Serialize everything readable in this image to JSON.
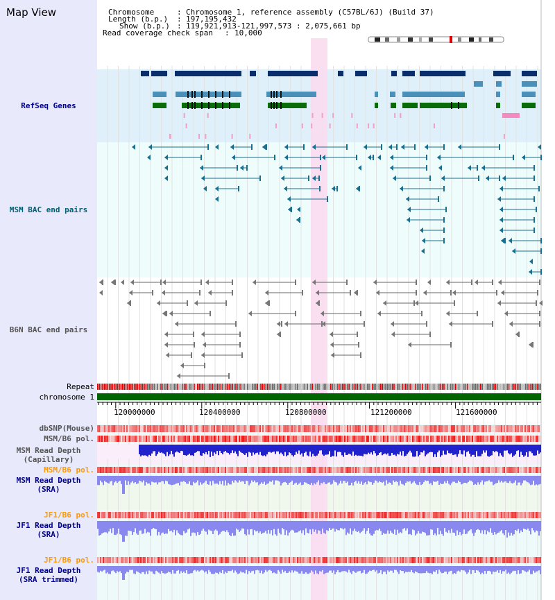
{
  "app": {
    "title": "Map View"
  },
  "header": {
    "chromosome_label": "Chromosome",
    "chromosome_value": "Chromosome 1, reference assembly (C57BL/6J) (Build 37)",
    "length_label": "Length (b.p.)",
    "length_value": "197,195,432",
    "show_label": "Show (b.p.)",
    "show_value": "119,921,913-121,997,573 : 2,075,661 bp",
    "coverage_label": "Read coverage check span",
    "coverage_value": "10,000"
  },
  "tracks": {
    "refseq": "RefSeq Genes",
    "msm_bac": "MSM BAC end pairs",
    "b6n_bac": "B6N BAC end pairs",
    "repeat": "Repeat",
    "chromosome": "chromosome 1",
    "dbsnp": "dbSNP(Mouse)",
    "msm_b6_pol_1": "MSM/B6 pol.",
    "msm_read_depth_cap": "MSM Read Depth\n(Capillary)",
    "msm_b6_pol_2": "MSM/B6 pol.",
    "msm_read_depth_sra": "MSM Read Depth\n(SRA)",
    "jf1_b6_pol_1": "JF1/B6 pol.",
    "jf1_read_depth_sra": "JF1 Read Depth\n(SRA)",
    "jf1_b6_pol_2": "JF1/B6 pol.",
    "jf1_read_depth_trim": "JF1 Read Depth\n(SRA trimmed)"
  },
  "axis": {
    "ticks": [
      "120000000",
      "120400000",
      "120800000",
      "121200000",
      "121600000"
    ]
  },
  "colors": {
    "panel": "#e8e9fb",
    "refseq_bg": "#dff0fa",
    "bac_bg": "#eefcfc",
    "gene_dark": "#0a2d6b",
    "gene_mid": "#4a90b8",
    "gene_green": "#0a6b0a",
    "bac_teal": "#1a6e8e",
    "bac_gray": "#777777",
    "highlight": "#fadcf0",
    "chrom_green": "#006400",
    "depth_blue": "#2222cc",
    "depth_light": "#8888ee"
  }
}
